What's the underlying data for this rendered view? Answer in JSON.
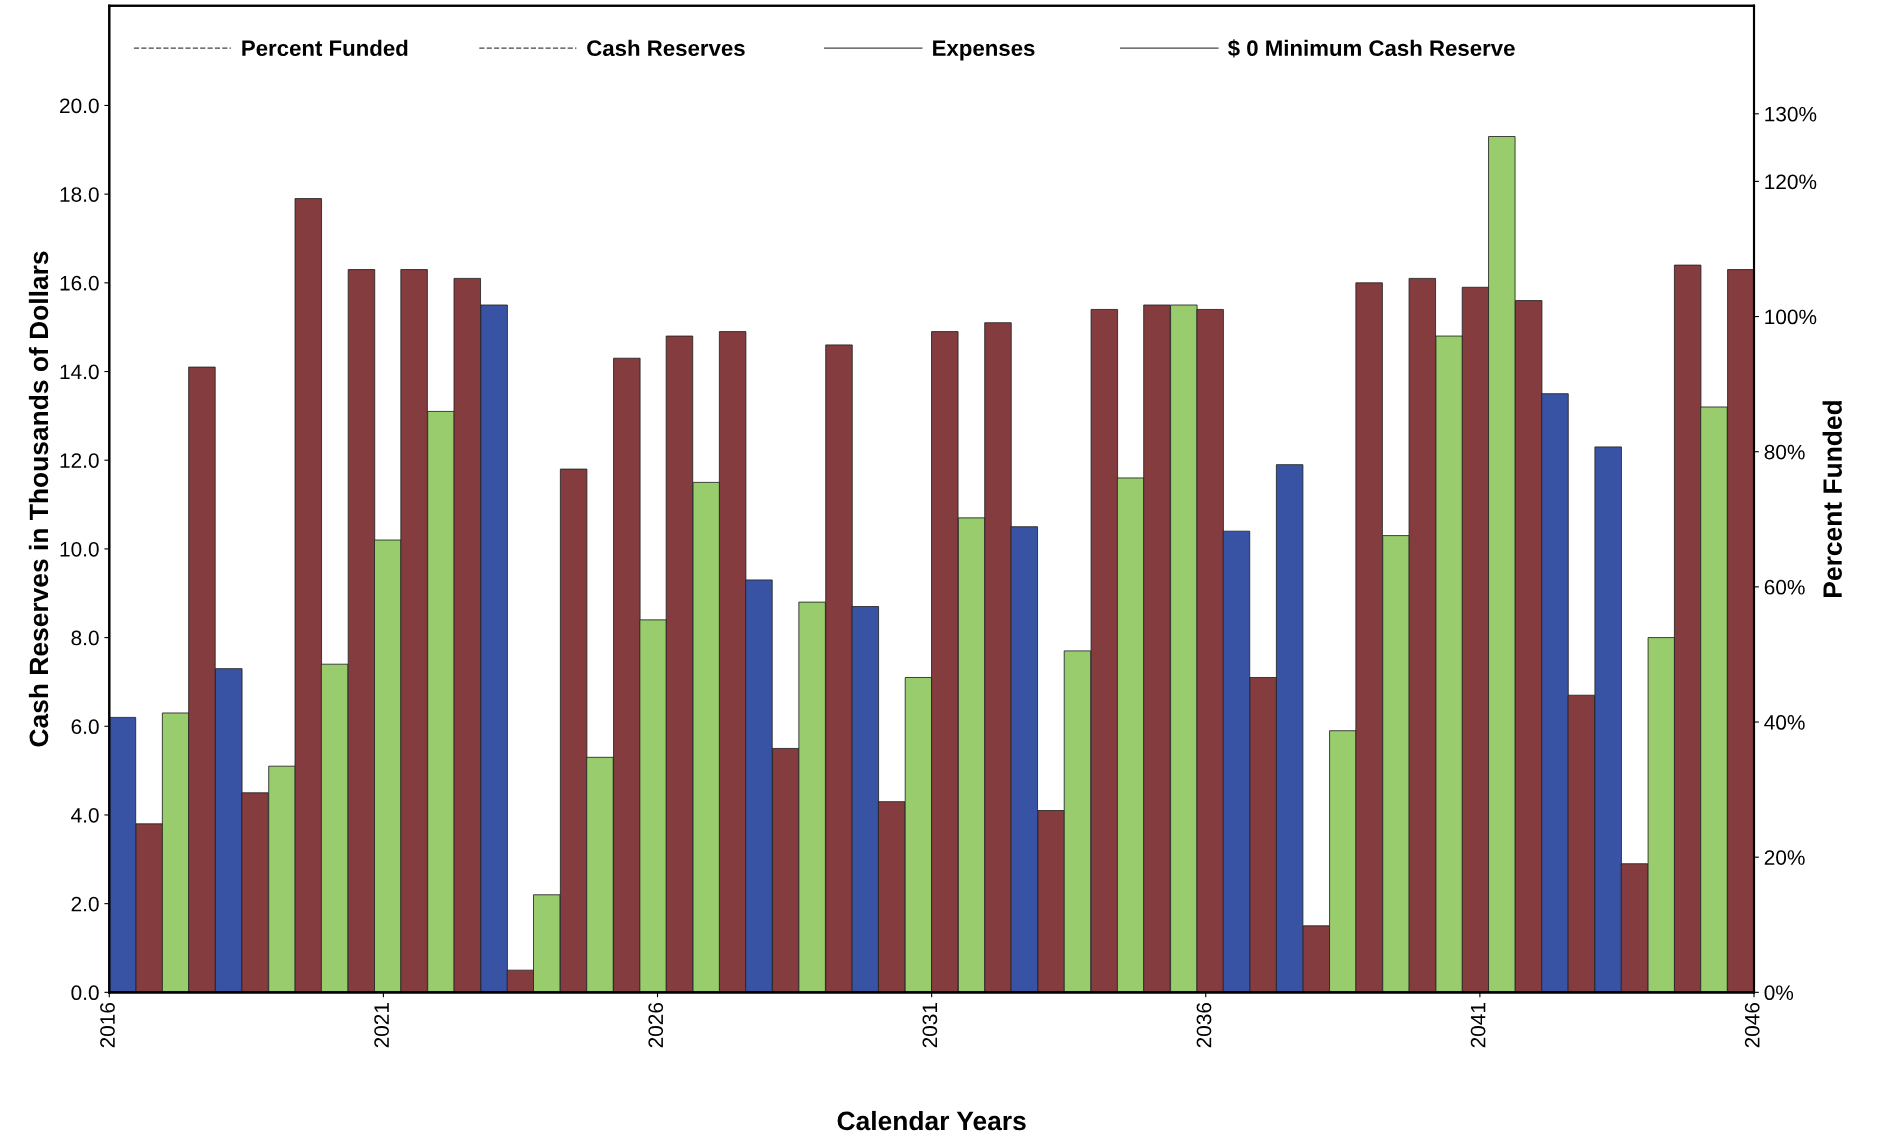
{
  "chart_data": {
    "type": "bar",
    "xlabel": "Calendar Years",
    "ylabel": "Cash Reserves in Thousands of Dollars",
    "y2label": "Percent Funded",
    "x": [
      2016.24,
      2016.73,
      2017.21,
      2017.69,
      2018.18,
      2018.66,
      2019.15,
      2019.63,
      2020.11,
      2020.6,
      2021.08,
      2021.56,
      2022.05,
      2022.53,
      2023.02,
      2023.5,
      2023.98,
      2024.47,
      2024.95,
      2025.44,
      2025.92,
      2026.4,
      2026.89,
      2027.37,
      2027.85,
      2028.34,
      2028.82,
      2029.31,
      2029.79,
      2030.27,
      2030.76,
      2031.24,
      2031.73,
      2032.21,
      2032.69,
      2033.18,
      2033.66,
      2034.15,
      2034.63,
      2035.11,
      2035.6,
      2036.08,
      2036.56,
      2037.05,
      2037.53,
      2038.02,
      2038.5,
      2038.98,
      2039.47,
      2039.95,
      2040.44,
      2040.92,
      2041.4,
      2041.89,
      2042.37,
      2042.85,
      2043.34,
      2043.82,
      2044.31,
      2044.79,
      2045.27,
      2045.76
    ],
    "values": [
      6.2,
      3.8,
      6.3,
      14.1,
      7.3,
      4.5,
      5.1,
      17.9,
      7.4,
      16.3,
      10.2,
      16.3,
      13.1,
      16.1,
      15.5,
      0.5,
      2.2,
      11.8,
      5.3,
      14.3,
      8.4,
      14.8,
      11.5,
      14.9,
      9.3,
      5.5,
      8.8,
      14.6,
      8.7,
      4.3,
      7.1,
      14.9,
      10.7,
      15.1,
      10.5,
      4.1,
      7.7,
      15.4,
      11.6,
      15.5,
      15.5,
      15.4,
      10.4,
      7.1,
      11.9,
      1.5,
      5.9,
      16.0,
      10.3,
      16.1,
      14.8,
      15.9,
      19.3,
      15.6,
      13.5,
      6.7,
      12.3,
      2.9,
      8.0,
      16.4,
      13.2,
      16.3
    ],
    "colors": [
      "#3953a4",
      "#843c3f",
      "#98cc6c",
      "#843c3f",
      "#3953a4",
      "#843c3f",
      "#98cc6c",
      "#843c3f",
      "#98cc6c",
      "#843c3f",
      "#98cc6c",
      "#843c3f",
      "#98cc6c",
      "#843c3f",
      "#3953a4",
      "#843c3f",
      "#98cc6c",
      "#843c3f",
      "#98cc6c",
      "#843c3f",
      "#98cc6c",
      "#843c3f",
      "#98cc6c",
      "#843c3f",
      "#3953a4",
      "#843c3f",
      "#98cc6c",
      "#843c3f",
      "#3953a4",
      "#843c3f",
      "#98cc6c",
      "#843c3f",
      "#98cc6c",
      "#843c3f",
      "#3953a4",
      "#843c3f",
      "#98cc6c",
      "#843c3f",
      "#98cc6c",
      "#843c3f",
      "#98cc6c",
      "#843c3f",
      "#3953a4",
      "#843c3f",
      "#3953a4",
      "#843c3f",
      "#98cc6c",
      "#843c3f",
      "#98cc6c",
      "#843c3f",
      "#98cc6c",
      "#843c3f",
      "#98cc6c",
      "#843c3f",
      "#3953a4",
      "#843c3f",
      "#3953a4",
      "#843c3f",
      "#98cc6c",
      "#843c3f",
      "#98cc6c",
      "#843c3f"
    ],
    "annotations": [
      "Percent Funded",
      "Cash Reserves",
      "Expenses",
      "$ 0 Minimum Cash Reserve"
    ],
    "xlim": [
      2016,
      2046
    ],
    "xticks": [
      2016,
      2021,
      2026,
      2031,
      2036,
      2041,
      2046
    ],
    "ylim": [
      0,
      22.25
    ],
    "yticks": [
      {
        "value": 0,
        "label": "0.0"
      },
      {
        "value": 2,
        "label": "2.0"
      },
      {
        "value": 4,
        "label": "4.0"
      },
      {
        "value": 6,
        "label": "6.0"
      },
      {
        "value": 8,
        "label": "8.0"
      },
      {
        "value": 10,
        "label": "10.0"
      },
      {
        "value": 12,
        "label": "12.0"
      },
      {
        "value": 14,
        "label": "14.0"
      },
      {
        "value": 16,
        "label": "16.0"
      },
      {
        "value": 18,
        "label": "18.0"
      },
      {
        "value": 20,
        "label": "20.0"
      }
    ],
    "y2lim": [
      0,
      146
    ],
    "y2ticks": [
      {
        "value": 0,
        "label": "0%"
      },
      {
        "value": 20,
        "label": "20%"
      },
      {
        "value": 40,
        "label": "40%"
      },
      {
        "value": 60,
        "label": "60%"
      },
      {
        "value": 80,
        "label": "80%"
      },
      {
        "value": 100,
        "label": "100%"
      },
      {
        "value": 120,
        "label": "120%"
      },
      {
        "value": 130,
        "label": "130%"
      }
    ],
    "grid": false
  }
}
